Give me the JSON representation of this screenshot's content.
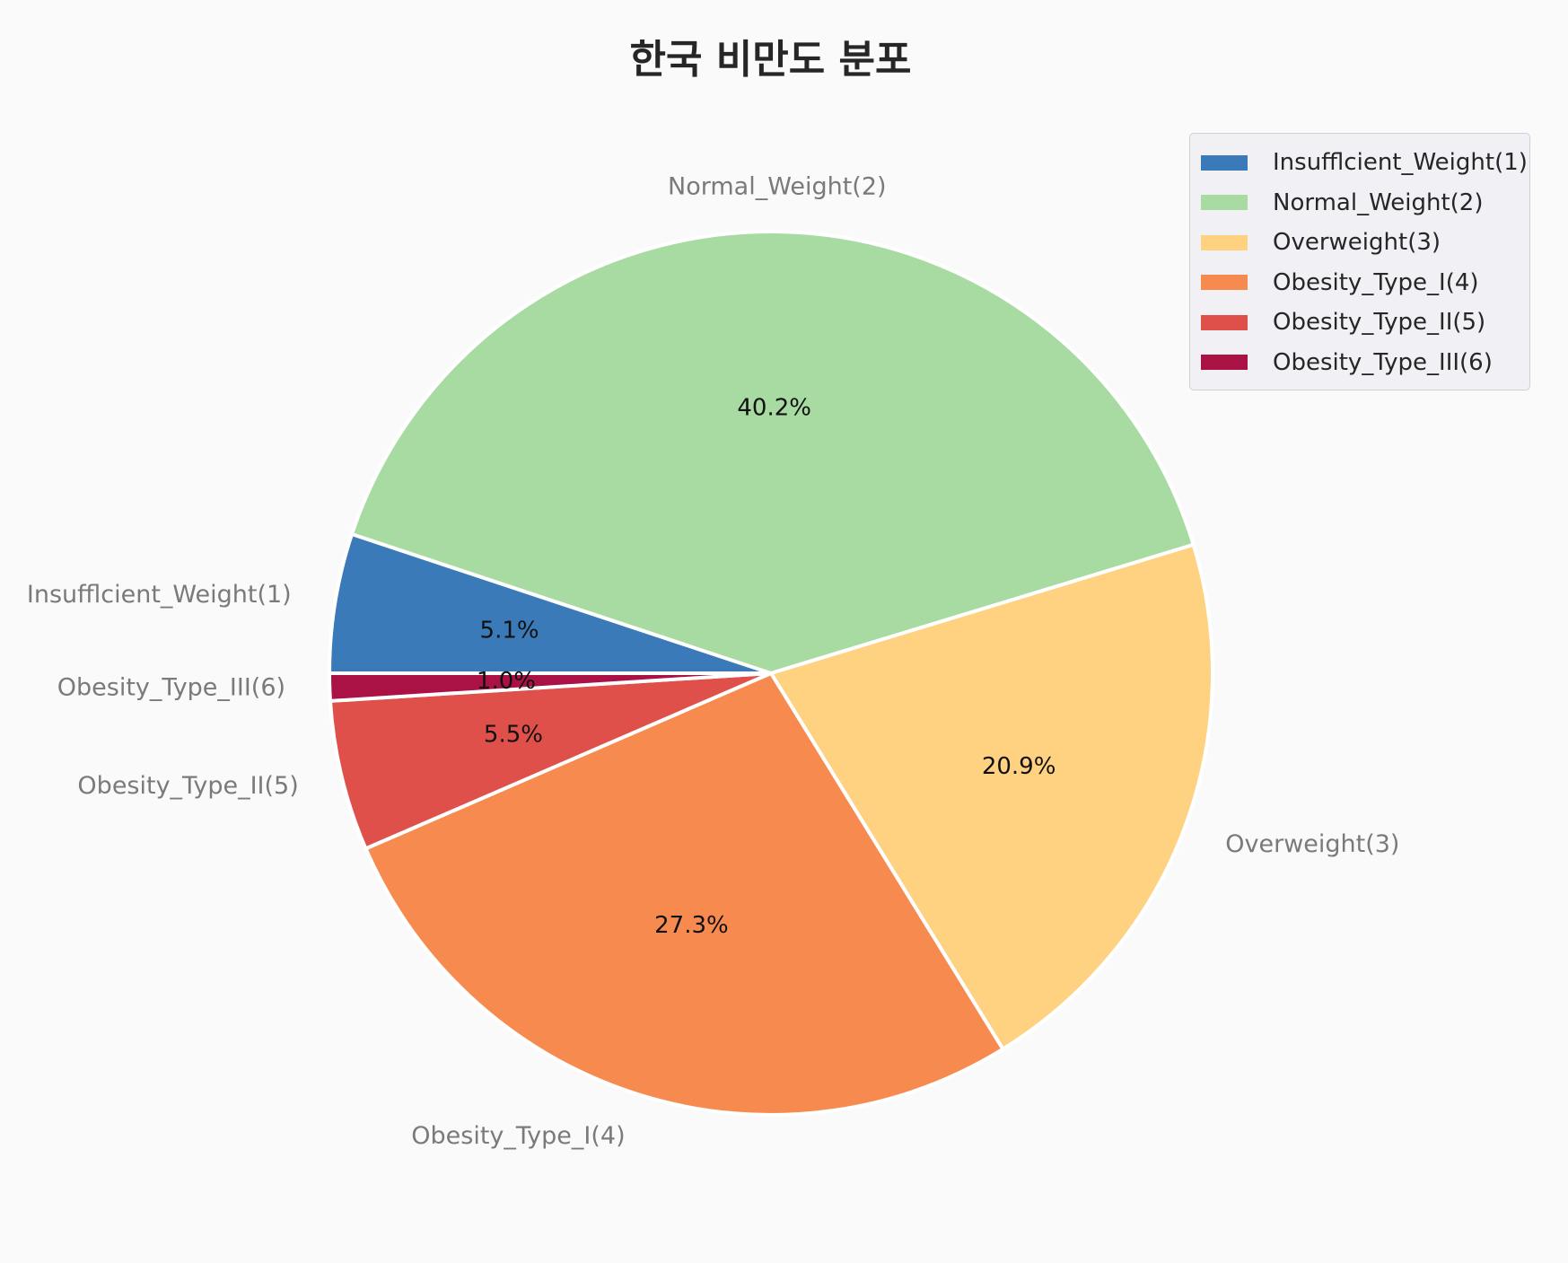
{
  "chart_data": {
    "type": "pie",
    "title": "한국 비만도 분포",
    "slices": [
      {
        "label": "Insufflcient_Weight(1)",
        "value": 5.1,
        "pct_label": "5.1%",
        "color": "#3a7ab8"
      },
      {
        "label": "Normal_Weight(2)",
        "value": 40.2,
        "pct_label": "40.2%",
        "color": "#a8dba2"
      },
      {
        "label": "Overweight(3)",
        "value": 20.9,
        "pct_label": "20.9%",
        "color": "#fed281"
      },
      {
        "label": "Obesity_Type_I(4)",
        "value": 27.3,
        "pct_label": "27.3%",
        "color": "#f78b4f"
      },
      {
        "label": "Obesity_Type_II(5)",
        "value": 5.5,
        "pct_label": "5.5%",
        "color": "#e0504a"
      },
      {
        "label": "Obesity_Type_III(6)",
        "value": 1.0,
        "pct_label": "1.0%",
        "color": "#aa1245"
      }
    ],
    "legend_position": "top-right"
  }
}
